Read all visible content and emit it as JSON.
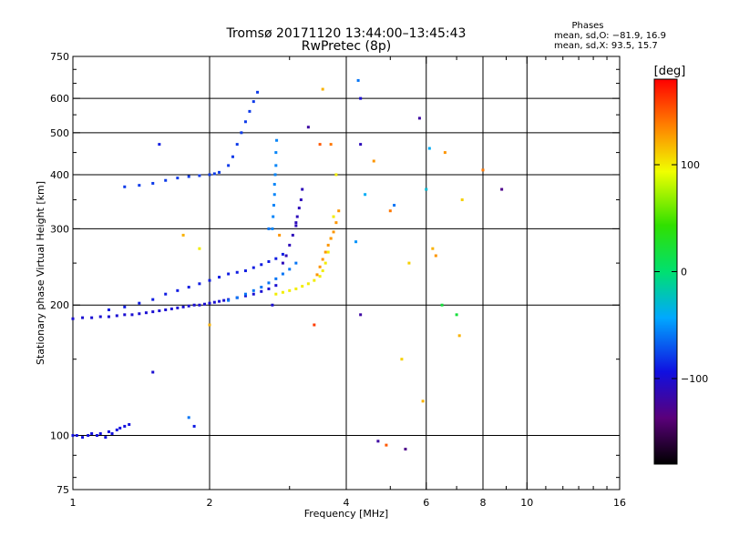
{
  "chart_data": {
    "type": "scatter",
    "title": "Tromsø 20171120 13:44:00–13:45:43",
    "subtitle": "RwPretec (8p)",
    "xlabel": "Frequency [MHz]",
    "ylabel": "Stationary phase Virtual Height [km]",
    "x_scale": "log",
    "y_scale": "log",
    "xlim": [
      1,
      16
    ],
    "ylim": [
      75,
      750
    ],
    "x_ticks": [
      1,
      2,
      4,
      6,
      8,
      10,
      16
    ],
    "x_tick_labels": [
      "1",
      "2",
      "4",
      "6",
      "8",
      "10",
      "16"
    ],
    "y_ticks": [
      75,
      100,
      200,
      300,
      400,
      500,
      600,
      750
    ],
    "y_tick_labels": [
      "75",
      "100",
      "200",
      "300",
      "400",
      "500",
      "600",
      "750"
    ],
    "grid": true,
    "phase_legend": {
      "title": "Phases",
      "line1": "mean, sd,O: −81.9, 16.9",
      "line2": "mean, sd,X:  93.5, 15.7"
    },
    "colorbar": {
      "label": "[deg]",
      "range": [
        -180,
        180
      ],
      "ticks": [
        100,
        0,
        -100
      ],
      "tick_labels": [
        "100",
        "0",
        "−100"
      ]
    },
    "series": [
      {
        "trace": "low_E_blue",
        "phase_deg": -95,
        "x": [
          1.0,
          1.02,
          1.05,
          1.08,
          1.1,
          1.13,
          1.15,
          1.18,
          1.2,
          1.22,
          1.25,
          1.27,
          1.3,
          1.33
        ],
        "y": [
          100,
          100,
          99,
          100,
          101,
          100,
          101,
          99,
          102,
          101,
          103,
          104,
          105,
          106
        ]
      },
      {
        "trace": "F_lower_blue",
        "phase_deg": -100,
        "x": [
          1.0,
          1.05,
          1.1,
          1.15,
          1.2,
          1.25,
          1.3,
          1.35,
          1.4,
          1.45,
          1.5,
          1.55,
          1.6,
          1.65,
          1.7,
          1.75,
          1.8,
          1.85,
          1.9,
          1.95,
          2.0,
          2.05,
          2.1,
          2.15,
          2.2,
          2.3,
          2.4,
          2.5,
          2.6,
          2.7,
          2.8
        ],
        "y": [
          186,
          187,
          187,
          188,
          188,
          189,
          190,
          190,
          191,
          192,
          193,
          194,
          195,
          196,
          197,
          198,
          199,
          200,
          200,
          201,
          202,
          203,
          204,
          205,
          206,
          208,
          210,
          212,
          215,
          218,
          222
        ]
      },
      {
        "trace": "F_upper_scatter_blue",
        "phase_deg": -90,
        "x": [
          1.2,
          1.3,
          1.4,
          1.5,
          1.6,
          1.7,
          1.8,
          1.9,
          2.0,
          2.1,
          2.2,
          2.3,
          2.4,
          2.5,
          2.6,
          2.7,
          2.8,
          2.9
        ],
        "y": [
          195,
          198,
          202,
          206,
          212,
          216,
          220,
          224,
          228,
          232,
          236,
          238,
          240,
          244,
          248,
          252,
          256,
          262
        ]
      },
      {
        "trace": "F_lightblue",
        "phase_deg": -60,
        "x": [
          2.2,
          2.3,
          2.4,
          2.5,
          2.6,
          2.7,
          2.8,
          2.9,
          3.0,
          3.1
        ],
        "y": [
          205,
          208,
          212,
          216,
          220,
          225,
          230,
          236,
          242,
          250
        ]
      },
      {
        "trace": "F_cusp_blue",
        "phase_deg": -110,
        "x": [
          2.9,
          2.95,
          3.0,
          3.05,
          3.1,
          3.12,
          3.15,
          3.18,
          3.2
        ],
        "y": [
          250,
          260,
          275,
          290,
          305,
          320,
          335,
          350,
          370
        ]
      },
      {
        "trace": "F_yellow",
        "phase_deg": 100,
        "x": [
          2.8,
          2.9,
          3.0,
          3.1,
          3.2,
          3.3,
          3.4,
          3.5,
          3.55,
          3.6,
          3.65,
          3.7,
          3.75,
          3.8
        ],
        "y": [
          212,
          214,
          216,
          218,
          221,
          224,
          228,
          233,
          240,
          250,
          265,
          285,
          320,
          400
        ]
      },
      {
        "trace": "F_orange",
        "phase_deg": 130,
        "x": [
          3.45,
          3.5,
          3.55,
          3.6,
          3.65,
          3.7,
          3.75,
          3.8,
          3.85
        ],
        "y": [
          235,
          245,
          255,
          265,
          275,
          285,
          295,
          310,
          330
        ]
      },
      {
        "trace": "M_upper",
        "phase_deg": -80,
        "x": [
          1.3,
          1.4,
          1.5,
          1.6,
          1.7,
          1.8,
          1.9,
          2.0,
          2.05,
          2.1,
          2.2,
          2.25,
          2.3,
          2.35,
          2.4,
          2.45,
          2.5,
          2.55
        ],
        "y": [
          375,
          378,
          382,
          388,
          393,
          396,
          398,
          400,
          402,
          405,
          420,
          440,
          470,
          500,
          530,
          560,
          590,
          620
        ]
      },
      {
        "trace": "M_vertical_lightblue",
        "phase_deg": -55,
        "x": [
          2.75,
          2.76,
          2.77,
          2.78,
          2.78,
          2.79,
          2.8,
          2.8,
          2.81
        ],
        "y": [
          300,
          320,
          340,
          360,
          380,
          400,
          420,
          450,
          480
        ]
      }
    ],
    "noise": {
      "phase_deg_mixed": true,
      "x": [
        1.5,
        1.55,
        1.75,
        1.8,
        1.85,
        1.9,
        2.0,
        2.7,
        2.75,
        2.85,
        3.1,
        3.3,
        3.4,
        3.5,
        3.55,
        3.7,
        4.2,
        4.25,
        4.3,
        4.3,
        4.3,
        4.4,
        4.6,
        4.7,
        4.9,
        5.0,
        5.1,
        5.3,
        5.4,
        5.5,
        5.8,
        5.9,
        6.0,
        6.1,
        6.2,
        6.3,
        6.5,
        6.6,
        7.0,
        7.1,
        7.2,
        8.0,
        8.8
      ],
      "y": [
        140,
        470,
        290,
        110,
        105,
        270,
        180,
        300,
        200,
        290,
        310,
        515,
        180,
        470,
        630,
        470,
        280,
        660,
        600,
        470,
        190,
        360,
        430,
        97,
        95,
        330,
        340,
        150,
        93,
        250,
        540,
        120,
        370,
        460,
        270,
        260,
        200,
        450,
        190,
        170,
        350,
        410,
        370
      ],
      "phase_deg": [
        -100,
        -90,
        120,
        -60,
        -90,
        100,
        120,
        -60,
        -100,
        130,
        -110,
        -120,
        160,
        150,
        120,
        140,
        -50,
        -60,
        -100,
        -110,
        -120,
        -40,
        130,
        -120,
        150,
        140,
        -60,
        110,
        -130,
        110,
        -120,
        120,
        -30,
        -40,
        120,
        130,
        20,
        130,
        20,
        120,
        110,
        140,
        -130
      ]
    }
  }
}
